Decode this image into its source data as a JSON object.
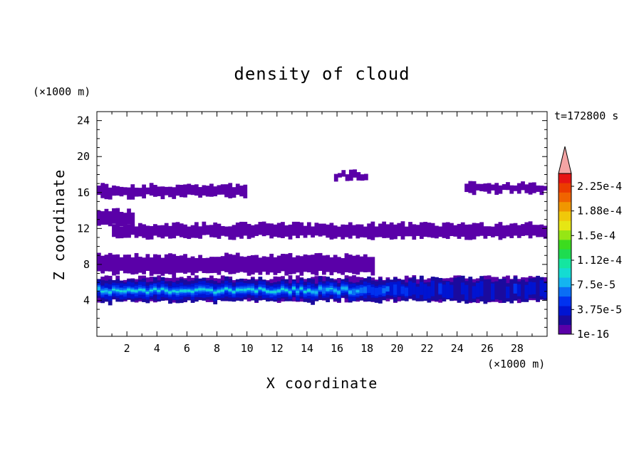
{
  "chart_data": {
    "type": "heatmap",
    "subtype": "filled-contour",
    "title": "density of cloud",
    "xlabel": "X coordinate",
    "ylabel": "Z coordinate",
    "x_unit": "(×1000 m)",
    "y_unit": "(×1000 m)",
    "time_label": "t=172800 s",
    "xlim": [
      0,
      30
    ],
    "ylim": [
      0,
      25
    ],
    "x_ticks": [
      2,
      4,
      6,
      8,
      10,
      12,
      14,
      16,
      18,
      20,
      22,
      24,
      26,
      28
    ],
    "y_ticks": [
      4,
      8,
      12,
      16,
      20,
      24
    ],
    "grid": false,
    "colorbar": {
      "labels": [
        "1e-16",
        "3.75e-5",
        "7.5e-5",
        "1.12e-4",
        "1.5e-4",
        "1.88e-4",
        "2.25e-4"
      ],
      "colors": [
        "#5a00a8",
        "#1a0a9e",
        "#0014d2",
        "#0032f0",
        "#0a6ef5",
        "#14b4f0",
        "#14dcd2",
        "#14e6a0",
        "#1edc50",
        "#3cdc1e",
        "#96e614",
        "#e6e614",
        "#f0c80a",
        "#f09600",
        "#f06400",
        "#eb3c00",
        "#e61414"
      ],
      "extend_color": "#f4a4a4",
      "extend": "max"
    },
    "cloud_layers": [
      {
        "z": [
          4.0,
          6.5
        ],
        "x": [
          0,
          30
        ],
        "peak": "7.5e-5"
      },
      {
        "z": [
          7.0,
          9.0
        ],
        "x": [
          0,
          18.5
        ],
        "peak": "1e-16"
      },
      {
        "z": [
          11.0,
          12.5
        ],
        "x": [
          1,
          30
        ],
        "peak": "1e-16"
      },
      {
        "z": [
          12.5,
          14.0
        ],
        "x": [
          0,
          2.5
        ],
        "peak": "1e-16"
      },
      {
        "z": [
          15.5,
          16.8
        ],
        "x": [
          0,
          10
        ],
        "peak": "1e-16"
      },
      {
        "z": [
          16.0,
          17.0
        ],
        "x": [
          24.5,
          30
        ],
        "peak": "1e-16"
      },
      {
        "z": [
          17.5,
          18.3
        ],
        "x": [
          15.8,
          18.0
        ],
        "peak": "1e-16"
      }
    ]
  }
}
